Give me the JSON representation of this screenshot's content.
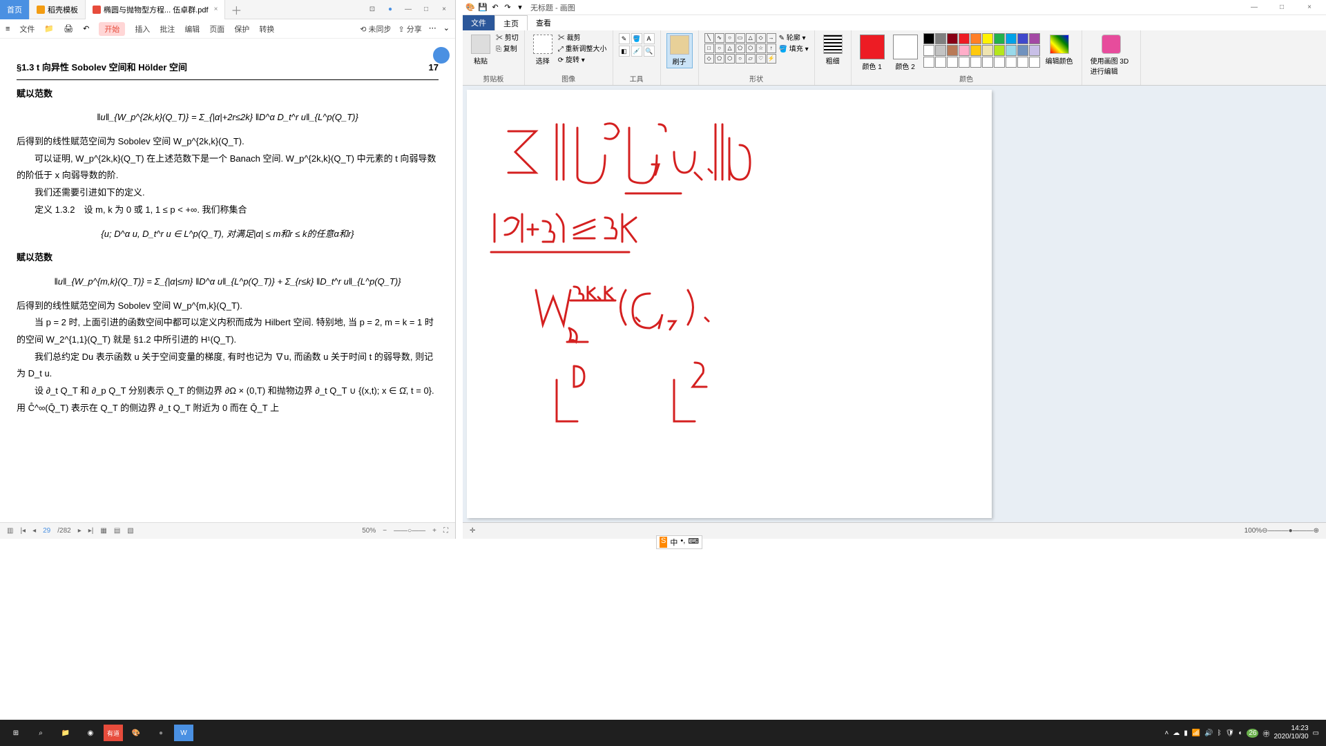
{
  "pdf": {
    "tabs": {
      "home": "首页",
      "template": "稻壳模板",
      "file": "椭圆与抛物型方程... 伍卓群.pdf"
    },
    "menu": [
      "文件",
      "开始",
      "插入",
      "批注",
      "编辑",
      "页面",
      "保护",
      "转换"
    ],
    "menu_right": [
      "⟲ 未同步",
      "⇪ 分享"
    ],
    "section": "§1.3  t 向异性 Sobolev 空间和 Hölder 空间",
    "page": "17",
    "heading1": "赋以范数",
    "eq1": "‖u‖_{W_p^{2k,k}(Q_T)} = Σ_{|α|+2r≤2k} ‖D^α D_t^r u‖_{L^p(Q_T)}",
    "p1": "后得到的线性赋范空间为 Sobolev 空间 W_p^{2k,k}(Q_T).",
    "p2": "　　可以证明, W_p^{2k,k}(Q_T) 在上述范数下是一个 Banach 空间. W_p^{2k,k}(Q_T) 中元素的 t 向弱导数的阶低于 x 向弱导数的阶.",
    "p3": "　　我们还需要引进如下的定义.",
    "p4": "　　定义 1.3.2　设 m, k 为 0 或 1, 1 ≤ p < +∞. 我们称集合",
    "eq2": "{u; D^α u, D_t^r u ∈ L^p(Q_T), 对满足|α| ≤ m和r ≤ k的任意α和r}",
    "heading2": "赋以范数",
    "eq3": "‖u‖_{W_p^{m,k}(Q_T)} = Σ_{|α|≤m} ‖D^α u‖_{L^p(Q_T)} + Σ_{r≤k} ‖D_t^r u‖_{L^p(Q_T)}",
    "p5": "后得到的线性赋范空间为 Sobolev 空间 W_p^{m,k}(Q_T).",
    "p6": "　　当 p = 2 时, 上面引进的函数空间中都可以定义内积而成为 Hilbert 空间. 特别地, 当 p = 2, m = k = 1 时的空间 W_2^{1,1}(Q_T) 就是 §1.2 中所引进的 H¹(Q_T).",
    "p7": "　　我们总约定 Du 表示函数 u 关于空间变量的梯度, 有时也记为 ∇u, 而函数 u 关于时间 t 的弱导数, 则记为 D_t u.",
    "p8": "　　设 ∂_t Q_T 和 ∂_p Q_T 分别表示 Q_T 的侧边界 ∂Ω × (0,T) 和抛物边界 ∂_t Q_T ∪ {(x,t); x ∈ Ω̄, t = 0}. 用 C̊^∞(Q̄_T) 表示在 Q_T 的侧边界 ∂_t Q_T 附近为 0 而在 Q̄_T 上",
    "footer": {
      "page_cur": "29",
      "page_total": "/282",
      "zoom": "50%"
    }
  },
  "paint": {
    "title": "无标题 - 画图",
    "tabs": {
      "file": "文件",
      "home": "主页",
      "view": "查看"
    },
    "groups": {
      "clipboard": "剪贴板",
      "paste": "粘贴",
      "cut": "剪切",
      "copy": "复制",
      "image": "图像",
      "select": "选择",
      "crop": "裁剪",
      "resize": "重新调整大小",
      "rotate": "旋转",
      "tools": "工具",
      "brushes": "刷子",
      "shapes": "形状",
      "outline": "轮廓",
      "fill": "填充",
      "thickness_label": "粗细",
      "colors": "颜色",
      "color1": "颜色 1",
      "color2": "颜色 2",
      "edit_colors": "编辑颜色",
      "edit3d": "使用画图 3D 进行编辑"
    },
    "palette": {
      "color1_hex": "#ed1c24",
      "color2_hex": "#ffffff",
      "row1": [
        "#000000",
        "#7f7f7f",
        "#880015",
        "#ed1c24",
        "#ff7f27",
        "#fff200",
        "#22b14c",
        "#00a2e8",
        "#3f48cc",
        "#a349a4"
      ],
      "row2": [
        "#ffffff",
        "#c3c3c3",
        "#b97a57",
        "#ffaec9",
        "#ffc90e",
        "#efe4b0",
        "#b5e61d",
        "#99d9ea",
        "#7092be",
        "#c8bfe7"
      ]
    },
    "status": {
      "zoom": "100%"
    }
  },
  "taskbar": {
    "time": "14:23",
    "date": "2020/10/30",
    "tray_temp": "26"
  }
}
